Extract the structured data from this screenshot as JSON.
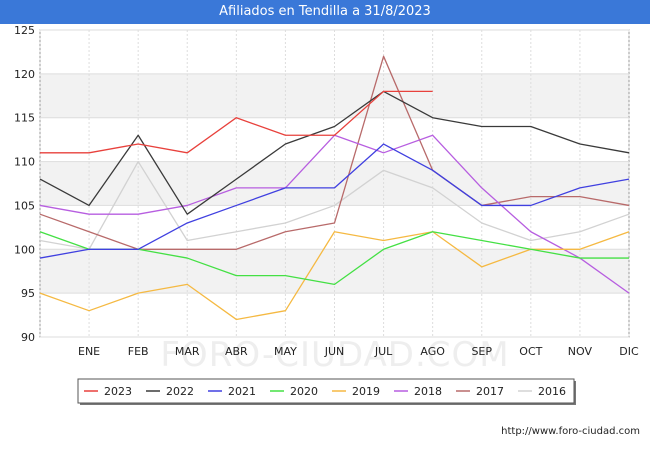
{
  "chart_data": {
    "type": "line",
    "title": "Afiliados en Tendilla a 31/8/2023",
    "categories": [
      "",
      "ENE",
      "FEB",
      "MAR",
      "ABR",
      "MAY",
      "JUN",
      "JUL",
      "AGO",
      "SEP",
      "OCT",
      "NOV",
      "DIC"
    ],
    "ylim": [
      90,
      125
    ],
    "yticks": [
      90,
      95,
      100,
      105,
      110,
      115,
      120,
      125
    ],
    "grid": true,
    "legend_position": "bottom",
    "watermark": "FORO-CIUDAD.COM",
    "series": [
      {
        "name": "2023",
        "color": "#e8413c",
        "values": [
          111,
          111,
          112,
          111,
          115,
          113,
          113,
          118,
          118,
          null,
          null,
          null,
          null
        ]
      },
      {
        "name": "2022",
        "color": "#3a3a3a",
        "values": [
          108,
          105,
          113,
          104,
          108,
          112,
          114,
          118,
          115,
          114,
          114,
          112,
          111
        ]
      },
      {
        "name": "2021",
        "color": "#4040e0",
        "values": [
          99,
          100,
          100,
          103,
          105,
          107,
          107,
          112,
          109,
          105,
          105,
          107,
          108
        ]
      },
      {
        "name": "2020",
        "color": "#44e044",
        "values": [
          102,
          100,
          100,
          99,
          97,
          97,
          96,
          100,
          102,
          101,
          100,
          99,
          99
        ]
      },
      {
        "name": "2019",
        "color": "#f5b942",
        "values": [
          95,
          93,
          95,
          96,
          92,
          93,
          102,
          101,
          102,
          98,
          100,
          100,
          102
        ]
      },
      {
        "name": "2018",
        "color": "#b75ee0",
        "values": [
          105,
          104,
          104,
          105,
          107,
          107,
          113,
          111,
          113,
          107,
          102,
          99,
          95
        ]
      },
      {
        "name": "2017",
        "color": "#b86a6a",
        "values": [
          104,
          102,
          100,
          100,
          100,
          102,
          103,
          122,
          109,
          105,
          106,
          106,
          105
        ]
      },
      {
        "name": "2016",
        "color": "#d2d2d2",
        "values": [
          101,
          100,
          110,
          101,
          102,
          103,
          105,
          109,
          107,
          103,
          101,
          102,
          104
        ]
      }
    ]
  },
  "footer": {
    "url": "http://www.foro-ciudad.com"
  }
}
